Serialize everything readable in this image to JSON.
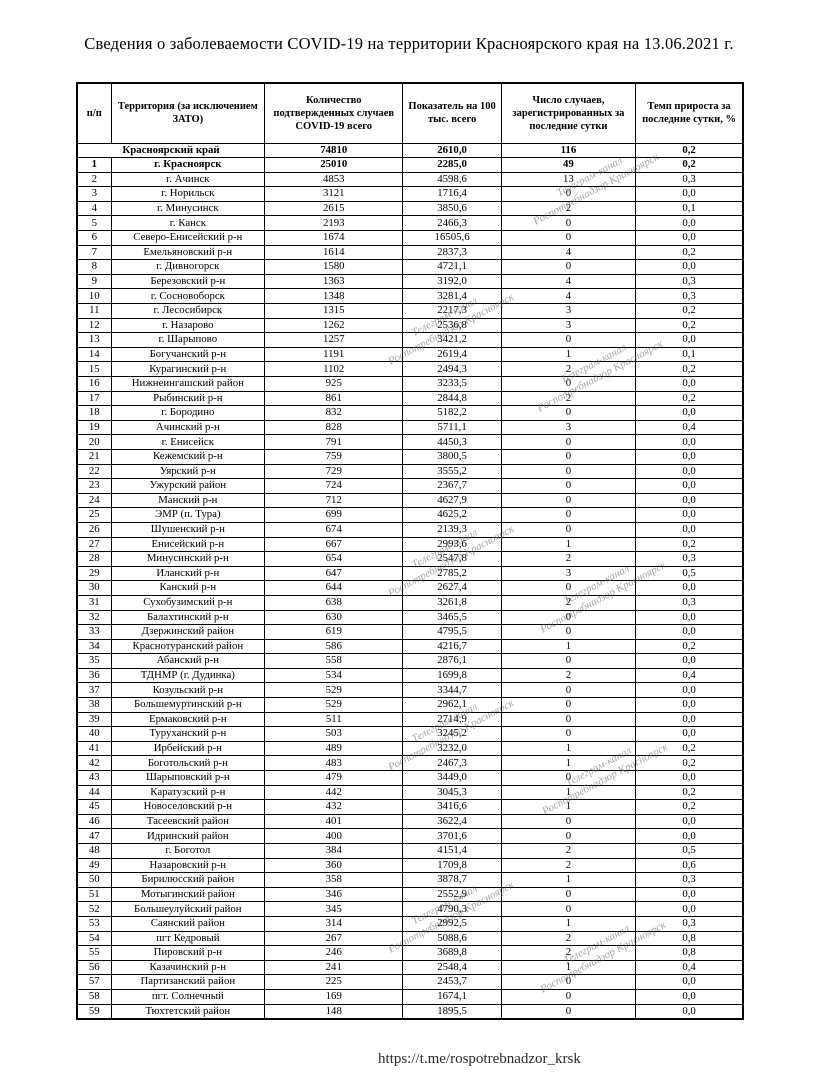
{
  "page": {
    "title": "Сведения о заболеваемости COVID-19 на территории Красноярского края на 13.06.2021 г.",
    "footer_url": "https://t.me/rospotrebnadzor_krsk"
  },
  "watermark": {
    "line1": "Телеграм-канал",
    "line2": "Роспотребнадзор Красноярск"
  },
  "table": {
    "headers": [
      "п/п",
      "Территория (за исключением ЗАТО)",
      "Количество подтвержденных случаев COVID-19 всего",
      "Показатель на 100 тыс. всего",
      "Число случаев, зарегистрированных за последние сутки",
      "Темп прироста за последние сутки, %"
    ],
    "summary_row": {
      "territory": "Красноярский край",
      "confirmed_total": "74810",
      "per_100k": "2610,0",
      "last_day_cases": "116",
      "growth_rate": "0,2"
    },
    "rows": [
      [
        "1",
        "г. Красноярск",
        "25010",
        "2285,0",
        "49",
        "0,2",
        true
      ],
      [
        "2",
        "г. Ачинск",
        "4853",
        "4598,6",
        "13",
        "0,3",
        false
      ],
      [
        "3",
        "г. Норильск",
        "3121",
        "1716,4",
        "0",
        "0,0",
        false
      ],
      [
        "4",
        "г. Минусинск",
        "2615",
        "3850,6",
        "2",
        "0,1",
        false
      ],
      [
        "5",
        "г. Канск",
        "2193",
        "2466,3",
        "0",
        "0,0",
        false
      ],
      [
        "6",
        "Северо-Енисейский р-н",
        "1674",
        "16505,6",
        "0",
        "0,0",
        false
      ],
      [
        "7",
        "Емельяновский р-н",
        "1614",
        "2837,3",
        "4",
        "0,2",
        false
      ],
      [
        "8",
        "г. Дивногорск",
        "1580",
        "4721,1",
        "0",
        "0,0",
        false
      ],
      [
        "9",
        "Березовский р-н",
        "1363",
        "3192,0",
        "4",
        "0,3",
        false
      ],
      [
        "10",
        "г. Сосновоборск",
        "1348",
        "3281,4",
        "4",
        "0,3",
        false
      ],
      [
        "11",
        "г. Лесосибирск",
        "1315",
        "2217,3",
        "3",
        "0,2",
        false
      ],
      [
        "12",
        "г. Назарово",
        "1262",
        "2536,8",
        "3",
        "0,2",
        false
      ],
      [
        "13",
        "г. Шарыпово",
        "1257",
        "3421,2",
        "0",
        "0,0",
        false
      ],
      [
        "14",
        "Богучанский р-н",
        "1191",
        "2619,4",
        "1",
        "0,1",
        false
      ],
      [
        "15",
        "Курагинский р-н",
        "1102",
        "2494,3",
        "2",
        "0,2",
        false
      ],
      [
        "16",
        "Нижнеингашский район",
        "925",
        "3233,5",
        "0",
        "0,0",
        false
      ],
      [
        "17",
        "Рыбинский р-н",
        "861",
        "2844,8",
        "2",
        "0,2",
        false
      ],
      [
        "18",
        "г. Бородино",
        "832",
        "5182,2",
        "0",
        "0,0",
        false
      ],
      [
        "19",
        "Ачинский р-н",
        "828",
        "5711,1",
        "3",
        "0,4",
        false
      ],
      [
        "20",
        "г. Енисейск",
        "791",
        "4450,3",
        "0",
        "0,0",
        false
      ],
      [
        "21",
        "Кежемский р-н",
        "759",
        "3800,5",
        "0",
        "0,0",
        false
      ],
      [
        "22",
        "Уярский р-н",
        "729",
        "3555,2",
        "0",
        "0,0",
        false
      ],
      [
        "23",
        "Ужурский район",
        "724",
        "2367,7",
        "0",
        "0,0",
        false
      ],
      [
        "24",
        "Манский р-н",
        "712",
        "4627,9",
        "0",
        "0,0",
        false
      ],
      [
        "25",
        "ЭМР (п. Тура)",
        "699",
        "4625,2",
        "0",
        "0,0",
        false
      ],
      [
        "26",
        "Шушенский р-н",
        "674",
        "2139,3",
        "0",
        "0,0",
        false
      ],
      [
        "27",
        "Енисейский р-н",
        "667",
        "2993,6",
        "1",
        "0,2",
        false
      ],
      [
        "28",
        "Минусинский р-н",
        "654",
        "2547,8",
        "2",
        "0,3",
        false
      ],
      [
        "29",
        "Иланский р-н",
        "647",
        "2785,2",
        "3",
        "0,5",
        false
      ],
      [
        "30",
        "Канский р-н",
        "644",
        "2627,4",
        "0",
        "0,0",
        false
      ],
      [
        "31",
        "Сухобузимский р-н",
        "638",
        "3261,8",
        "2",
        "0,3",
        false
      ],
      [
        "32",
        "Балахтинский р-н",
        "630",
        "3465,5",
        "0",
        "0,0",
        false
      ],
      [
        "33",
        "Дзержинский район",
        "619",
        "4795,5",
        "0",
        "0,0",
        false
      ],
      [
        "34",
        "Краснотуранский район",
        "586",
        "4216,7",
        "1",
        "0,2",
        false
      ],
      [
        "35",
        "Абанский р-н",
        "558",
        "2876,1",
        "0",
        "0,0",
        false
      ],
      [
        "36",
        "ТДНМР (г. Дудинка)",
        "534",
        "1699,8",
        "2",
        "0,4",
        false
      ],
      [
        "37",
        "Козульский р-н",
        "529",
        "3344,7",
        "0",
        "0,0",
        false
      ],
      [
        "38",
        "Большемуртинский р-н",
        "529",
        "2962,1",
        "0",
        "0,0",
        false
      ],
      [
        "39",
        "Ермаковский р-н",
        "511",
        "2714,9",
        "0",
        "0,0",
        false
      ],
      [
        "40",
        "Туруханский р-н",
        "503",
        "3245,2",
        "0",
        "0,0",
        false
      ],
      [
        "41",
        "Ирбейский р-н",
        "489",
        "3232,0",
        "1",
        "0,2",
        false
      ],
      [
        "42",
        "Боготольский р-н",
        "483",
        "2467,3",
        "1",
        "0,2",
        false
      ],
      [
        "43",
        "Шарыповский р-н",
        "479",
        "3449,0",
        "0",
        "0,0",
        false
      ],
      [
        "44",
        "Каратузский р-н",
        "442",
        "3045,3",
        "1",
        "0,2",
        false
      ],
      [
        "45",
        "Новоселовский р-н",
        "432",
        "3416,6",
        "1",
        "0,2",
        false
      ],
      [
        "46",
        "Тасеевский район",
        "401",
        "3622,4",
        "0",
        "0,0",
        false
      ],
      [
        "47",
        "Идринский район",
        "400",
        "3701,6",
        "0",
        "0,0",
        false
      ],
      [
        "48",
        "г. Боготол",
        "384",
        "4151,4",
        "2",
        "0,5",
        false
      ],
      [
        "49",
        "Назаровский р-н",
        "360",
        "1709,8",
        "2",
        "0,6",
        false
      ],
      [
        "50",
        "Бирилюсский район",
        "358",
        "3878,7",
        "1",
        "0,3",
        false
      ],
      [
        "51",
        "Мотыгинский район",
        "346",
        "2552,9",
        "0",
        "0,0",
        false
      ],
      [
        "52",
        "Большеулуйский район",
        "345",
        "4790,3",
        "0",
        "0,0",
        false
      ],
      [
        "53",
        "Саянский район",
        "314",
        "2992,5",
        "1",
        "0,3",
        false
      ],
      [
        "54",
        "пгт Кедровый",
        "267",
        "5088,6",
        "2",
        "0,8",
        false
      ],
      [
        "55",
        "Пировский р-н",
        "246",
        "3689,8",
        "2",
        "0,8",
        false
      ],
      [
        "56",
        "Казачинский р-н",
        "241",
        "2548,4",
        "1",
        "0,4",
        false
      ],
      [
        "57",
        "Партизанский район",
        "225",
        "2453,7",
        "0",
        "0,0",
        false
      ],
      [
        "58",
        "пгт. Солнечный",
        "169",
        "1674,1",
        "0",
        "0,0",
        false
      ],
      [
        "59",
        "Тюхтетский район",
        "148",
        "1895,5",
        "0",
        "0,0",
        false
      ]
    ]
  }
}
